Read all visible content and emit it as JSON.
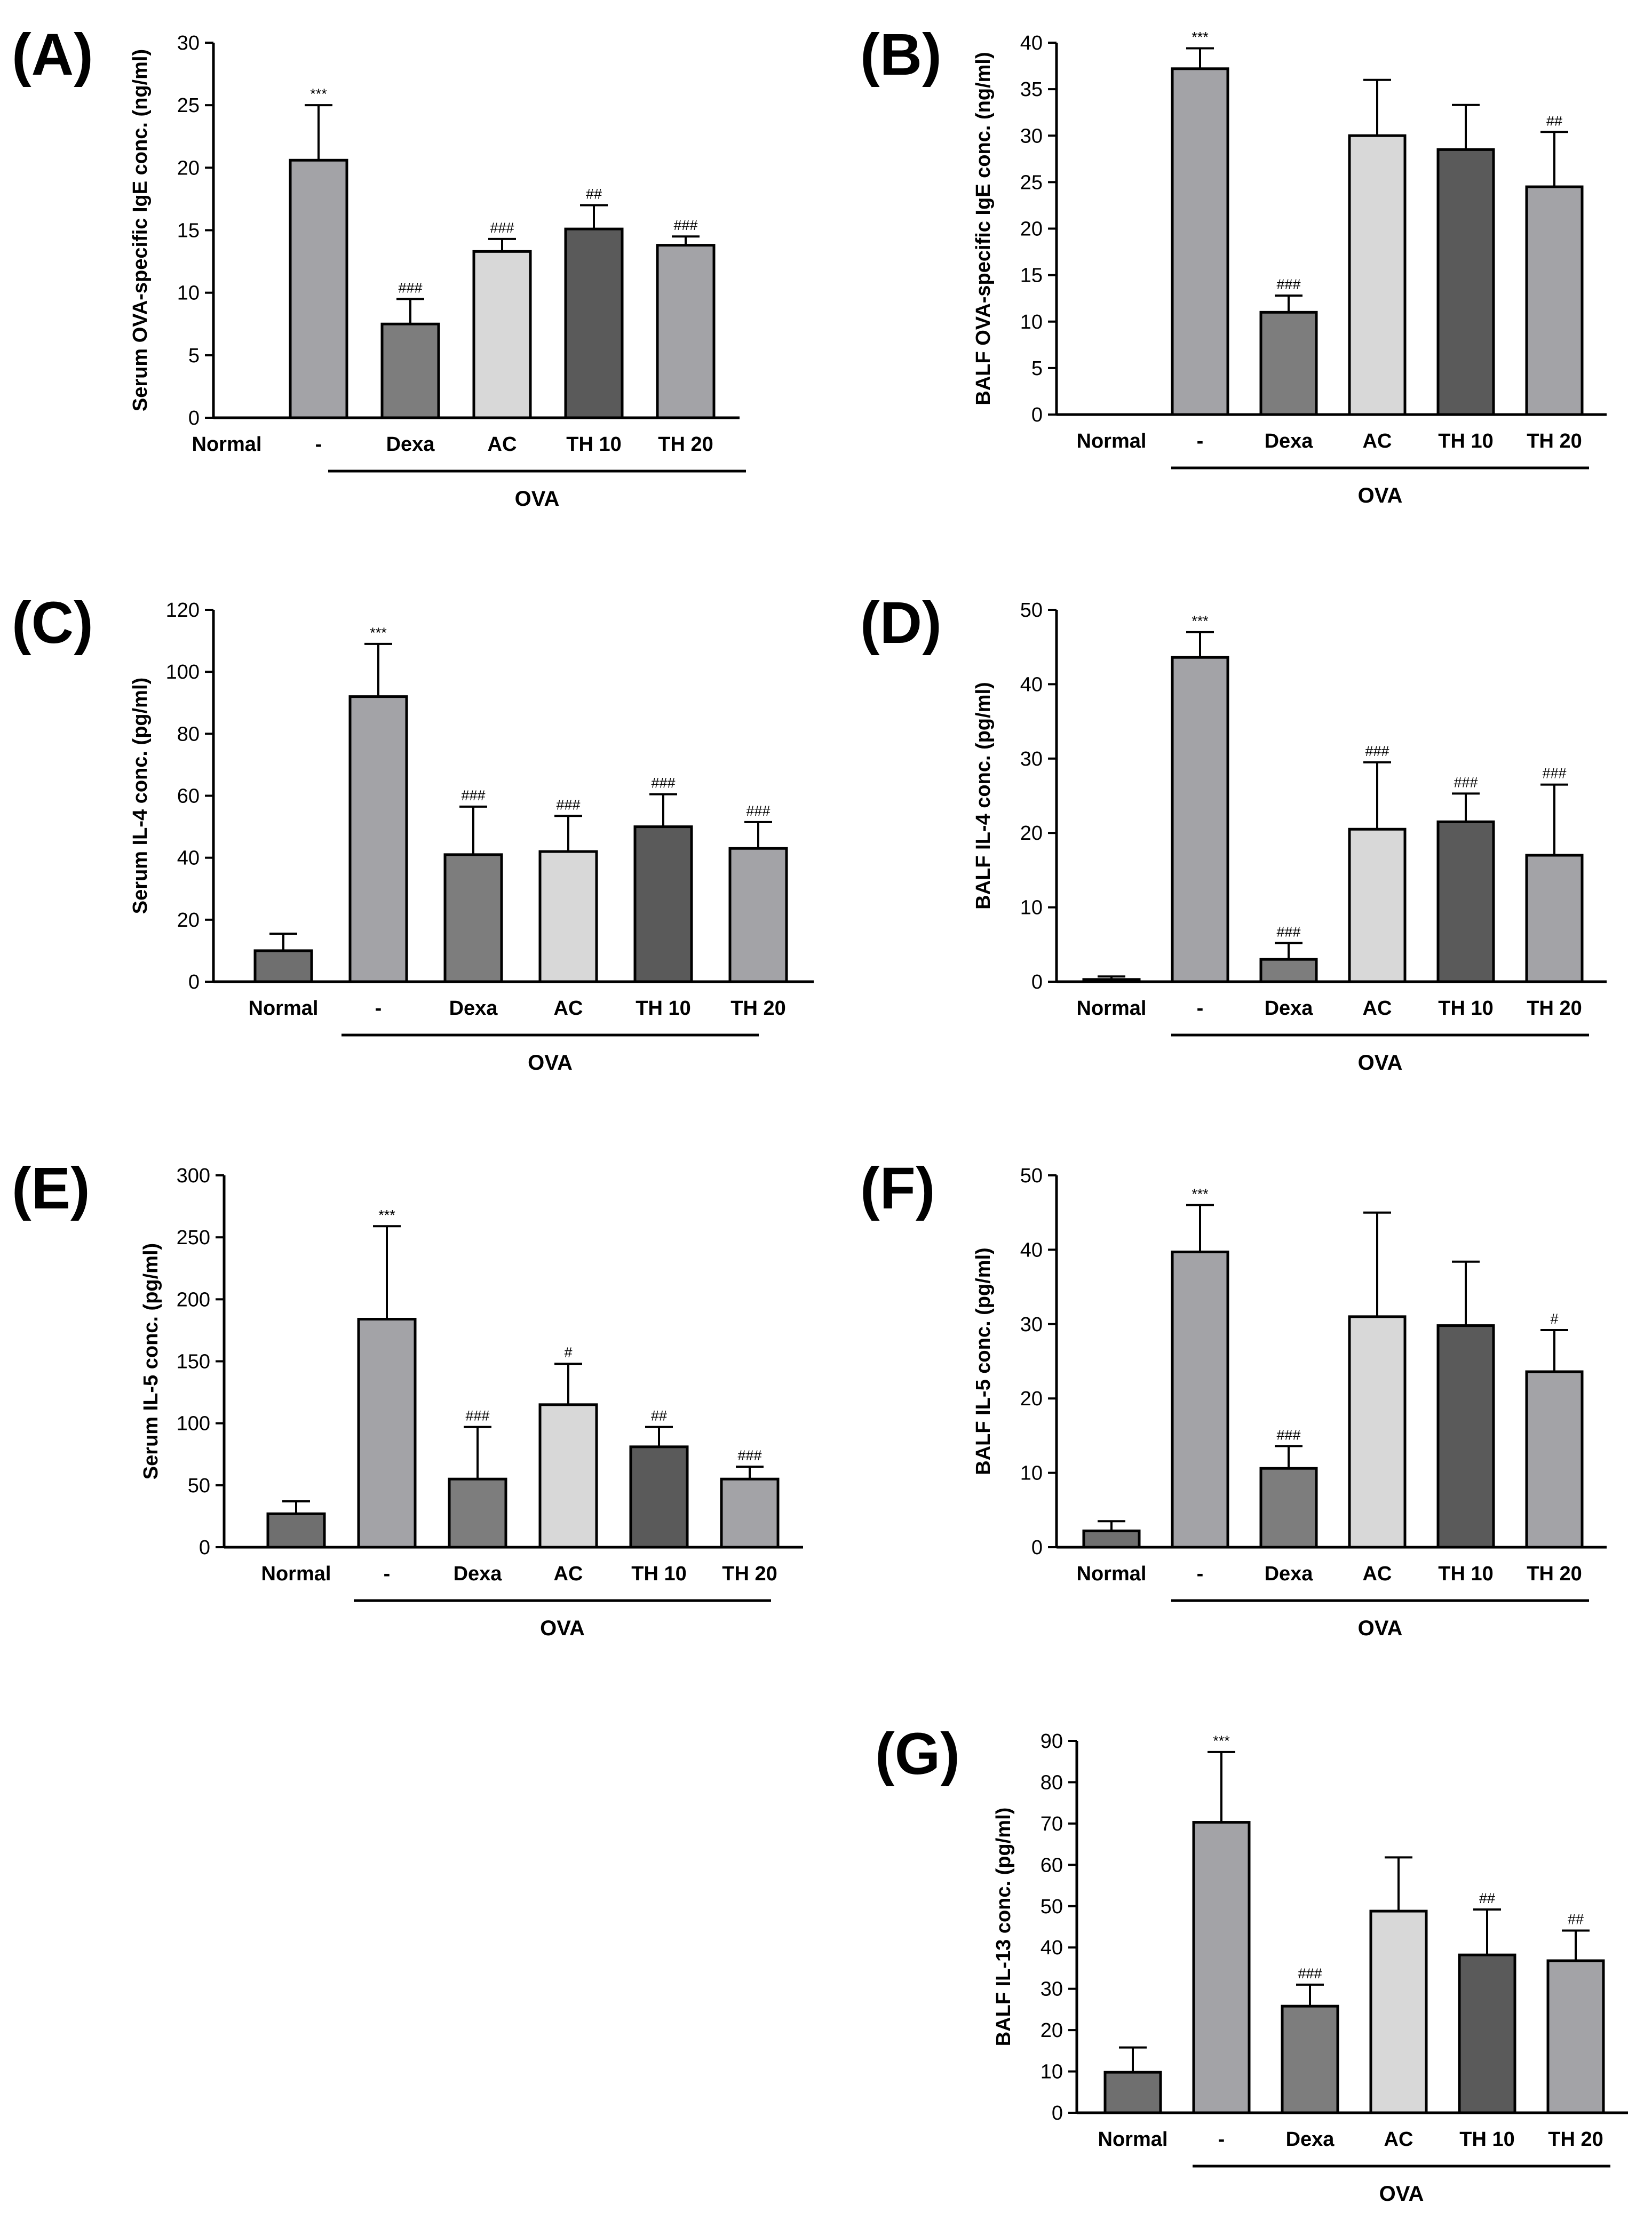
{
  "figure": {
    "colors": {
      "Normal": "#6f6f6f",
      "-": "#a3a3a7",
      "Dexa": "#7d7d7d",
      "AC": "#d8d8d8",
      "TH 10": "#5a5a5a",
      "TH 20": "#a3a3a7"
    }
  },
  "chart_data": [
    {
      "id": "A",
      "panel_label": "(A)",
      "type": "bar",
      "ylabel": "Serum OVA-specific IgE conc. (ng/ml)",
      "ylim": [
        0,
        30
      ],
      "yticks": [
        0,
        5,
        10,
        15,
        20,
        25,
        30
      ],
      "categories": [
        "Normal",
        "-",
        "Dexa",
        "AC",
        "TH 10",
        "TH 20"
      ],
      "values": [
        0,
        20.6,
        7.5,
        13.3,
        15.1,
        13.8
      ],
      "errors": [
        0,
        4.4,
        2.0,
        1.0,
        1.9,
        0.7
      ],
      "annotations": [
        "",
        "***",
        "###",
        "###",
        "##",
        "###"
      ],
      "group_label": "OVA"
    },
    {
      "id": "B",
      "panel_label": "(B)",
      "type": "bar",
      "ylabel": "BALF OVA-specific IgE conc. (ng/ml)",
      "ylim": [
        0,
        40
      ],
      "yticks": [
        0,
        5,
        10,
        15,
        20,
        25,
        30,
        35,
        40
      ],
      "categories": [
        "Normal",
        "-",
        "Dexa",
        "AC",
        "TH 10",
        "TH 20"
      ],
      "values": [
        0,
        37.2,
        11.0,
        30.0,
        28.5,
        24.5
      ],
      "errors": [
        0,
        2.2,
        1.8,
        6.0,
        4.8,
        5.9
      ],
      "annotations": [
        "",
        "***",
        "###",
        "",
        "",
        "##"
      ],
      "group_label": "OVA"
    },
    {
      "id": "C",
      "panel_label": "(C)",
      "type": "bar",
      "ylabel": "Serum IL-4 conc. (pg/ml)",
      "ylim": [
        0,
        120
      ],
      "yticks": [
        0,
        20,
        40,
        60,
        80,
        100,
        120
      ],
      "categories": [
        "Normal",
        "-",
        "Dexa",
        "AC",
        "TH 10",
        "TH 20"
      ],
      "values": [
        10,
        92,
        41,
        42,
        50,
        43
      ],
      "errors": [
        5.5,
        17,
        15.5,
        11.5,
        10.5,
        8.5
      ],
      "annotations": [
        "",
        "***",
        "###",
        "###",
        "###",
        "###"
      ],
      "group_label": "OVA"
    },
    {
      "id": "D",
      "panel_label": "(D)",
      "type": "bar",
      "ylabel": "BALF IL-4 conc. (pg/ml)",
      "ylim": [
        0,
        50
      ],
      "yticks": [
        0,
        10,
        20,
        30,
        40,
        50
      ],
      "categories": [
        "Normal",
        "-",
        "Dexa",
        "AC",
        "TH 10",
        "TH 20"
      ],
      "values": [
        0.3,
        43.6,
        3.0,
        20.5,
        21.5,
        17.0
      ],
      "errors": [
        0.4,
        3.4,
        2.2,
        9.0,
        3.8,
        9.5
      ],
      "annotations": [
        "",
        "***",
        "###",
        "###",
        "###",
        "###"
      ],
      "group_label": "OVA"
    },
    {
      "id": "E",
      "panel_label": "(E)",
      "type": "bar",
      "ylabel": "Serum IL-5 conc. (pg/ml)",
      "ylim": [
        0,
        300
      ],
      "yticks": [
        0,
        50,
        100,
        150,
        200,
        250,
        300
      ],
      "categories": [
        "Normal",
        "-",
        "Dexa",
        "AC",
        "TH 10",
        "TH 20"
      ],
      "values": [
        27,
        184,
        55,
        115,
        81,
        55
      ],
      "errors": [
        10,
        75,
        42,
        33,
        16,
        10
      ],
      "annotations": [
        "",
        "***",
        "###",
        "#",
        "##",
        "###"
      ],
      "group_label": "OVA"
    },
    {
      "id": "F",
      "panel_label": "(F)",
      "type": "bar",
      "ylabel": "BALF IL-5 conc. (pg/ml)",
      "ylim": [
        0,
        50
      ],
      "yticks": [
        0,
        10,
        20,
        30,
        40,
        50
      ],
      "categories": [
        "Normal",
        "-",
        "Dexa",
        "AC",
        "TH 10",
        "TH 20"
      ],
      "values": [
        2.2,
        39.7,
        10.6,
        31.0,
        29.8,
        23.6
      ],
      "errors": [
        1.3,
        6.3,
        3.0,
        14.0,
        8.6,
        5.6
      ],
      "annotations": [
        "",
        "***",
        "###",
        "",
        "",
        "#"
      ],
      "group_label": "OVA"
    },
    {
      "id": "G",
      "panel_label": "(G)",
      "type": "bar",
      "ylabel": "BALF IL-13 conc. (pg/ml)",
      "ylim": [
        0,
        90
      ],
      "yticks": [
        0,
        10,
        20,
        30,
        40,
        50,
        60,
        70,
        80,
        90
      ],
      "categories": [
        "Normal",
        "-",
        "Dexa",
        "AC",
        "TH 10",
        "TH 20"
      ],
      "values": [
        9.8,
        70.3,
        25.8,
        48.8,
        38.2,
        36.8
      ],
      "errors": [
        6.0,
        17.0,
        5.2,
        13.0,
        11.0,
        7.3
      ],
      "annotations": [
        "",
        "***",
        "###",
        "",
        "##",
        "##"
      ],
      "group_label": "OVA"
    }
  ]
}
